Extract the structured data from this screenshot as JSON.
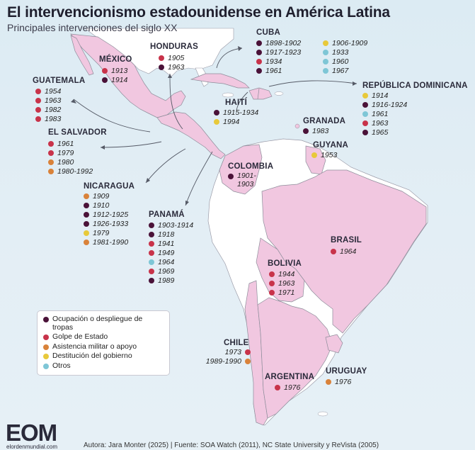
{
  "title": "El intervencionismo estadounidense en América Latina",
  "subtitle": "Principales intervenciones del siglo XX",
  "colors": {
    "ocupacion": "#4a1238",
    "golpe": "#c8334a",
    "asistencia": "#d9823a",
    "destitucion": "#e8c93a",
    "otros": "#7ec6d6",
    "land_highlight": "#f1c7e0",
    "land_other": "#ffffff",
    "sea": "#dde9f1",
    "border": "#8d8d9a"
  },
  "legend": [
    {
      "type": "ocupacion",
      "label": "Ocupación o despliegue de tropas"
    },
    {
      "type": "golpe",
      "label": "Golpe de Estado"
    },
    {
      "type": "asistencia",
      "label": "Asistencia militar o apoyo"
    },
    {
      "type": "destitucion",
      "label": "Destitución del gobierno"
    },
    {
      "type": "otros",
      "label": "Otros"
    }
  ],
  "countries": {
    "mexico": {
      "name": "MÉXICO",
      "entries": [
        {
          "year": "1913",
          "type": "golpe"
        },
        {
          "year": "1914",
          "type": "ocupacion"
        }
      ]
    },
    "honduras": {
      "name": "HONDURAS",
      "entries": [
        {
          "year": "1905",
          "type": "golpe"
        },
        {
          "year": "1963",
          "type": "ocupacion"
        }
      ]
    },
    "cuba": {
      "name": "CUBA",
      "entries": [
        {
          "year": "1898-1902",
          "type": "ocupacion"
        },
        {
          "year": "1906-1909",
          "type": "destitucion"
        },
        {
          "year": "1917-1923",
          "type": "ocupacion"
        },
        {
          "year": "1933",
          "type": "otros"
        },
        {
          "year": "1934",
          "type": "golpe"
        },
        {
          "year": "1960",
          "type": "otros"
        },
        {
          "year": "1961",
          "type": "ocupacion"
        },
        {
          "year": "1967",
          "type": "otros"
        }
      ]
    },
    "guatemala": {
      "name": "GUATEMALA",
      "entries": [
        {
          "year": "1954",
          "type": "golpe"
        },
        {
          "year": "1963",
          "type": "golpe"
        },
        {
          "year": "1982",
          "type": "golpe"
        },
        {
          "year": "1983",
          "type": "golpe"
        }
      ]
    },
    "republica_dominicana": {
      "name": "REPÚBLICA DOMINICANA",
      "entries": [
        {
          "year": "1914",
          "type": "destitucion"
        },
        {
          "year": "1916-1924",
          "type": "ocupacion"
        },
        {
          "year": "1961",
          "type": "otros"
        },
        {
          "year": "1963",
          "type": "golpe"
        },
        {
          "year": "1965",
          "type": "ocupacion"
        }
      ]
    },
    "haiti": {
      "name": "HAITÍ",
      "entries": [
        {
          "year": "1915-1934",
          "type": "ocupacion"
        },
        {
          "year": "1994",
          "type": "destitucion"
        }
      ]
    },
    "granada": {
      "name": "GRANADA",
      "entries": [
        {
          "year": "1983",
          "type": "ocupacion"
        }
      ]
    },
    "el_salvador": {
      "name": "EL SALVADOR",
      "entries": [
        {
          "year": "1961",
          "type": "golpe"
        },
        {
          "year": "1979",
          "type": "golpe"
        },
        {
          "year": "1980",
          "type": "asistencia"
        },
        {
          "year": "1980-1992",
          "type": "asistencia"
        }
      ]
    },
    "guyana": {
      "name": "GUYANA",
      "entries": [
        {
          "year": "1953",
          "type": "destitucion"
        }
      ]
    },
    "colombia": {
      "name": "COLOMBIA",
      "entries": [
        {
          "year": "1901-1903",
          "type": "ocupacion"
        }
      ]
    },
    "nicaragua": {
      "name": "NICARAGUA",
      "entries": [
        {
          "year": "1909",
          "type": "asistencia"
        },
        {
          "year": "1910",
          "type": "ocupacion"
        },
        {
          "year": "1912-1925",
          "type": "ocupacion"
        },
        {
          "year": "1926-1933",
          "type": "ocupacion"
        },
        {
          "year": "1979",
          "type": "destitucion"
        },
        {
          "year": "1981-1990",
          "type": "asistencia"
        }
      ]
    },
    "panama": {
      "name": "PANAMÁ",
      "entries": [
        {
          "year": "1903-1914",
          "type": "ocupacion"
        },
        {
          "year": "1918",
          "type": "ocupacion"
        },
        {
          "year": "1941",
          "type": "golpe"
        },
        {
          "year": "1949",
          "type": "golpe"
        },
        {
          "year": "1964",
          "type": "otros"
        },
        {
          "year": "1969",
          "type": "golpe"
        },
        {
          "year": "1989",
          "type": "ocupacion"
        }
      ]
    },
    "brasil": {
      "name": "BRASIL",
      "entries": [
        {
          "year": "1964",
          "type": "golpe"
        }
      ]
    },
    "bolivia": {
      "name": "BOLIVIA",
      "entries": [
        {
          "year": "1944",
          "type": "golpe"
        },
        {
          "year": "1963",
          "type": "golpe"
        },
        {
          "year": "1971",
          "type": "golpe"
        }
      ]
    },
    "chile": {
      "name": "CHILE",
      "entries": [
        {
          "year": "1973",
          "type": "golpe"
        },
        {
          "year": "1989-1990",
          "type": "asistencia"
        }
      ]
    },
    "argentina": {
      "name": "ARGENTINA",
      "entries": [
        {
          "year": "1976",
          "type": "golpe"
        }
      ]
    },
    "uruguay": {
      "name": "URUGUAY",
      "entries": [
        {
          "year": "1976",
          "type": "asistencia"
        }
      ]
    }
  },
  "footer": {
    "logo": "EOM",
    "logo_sub": "elordenmundial.com",
    "credits": "Autora: Jara Monter (2025) | Fuente: SOA Watch (2011), NC State University y ReVista (2005)"
  }
}
